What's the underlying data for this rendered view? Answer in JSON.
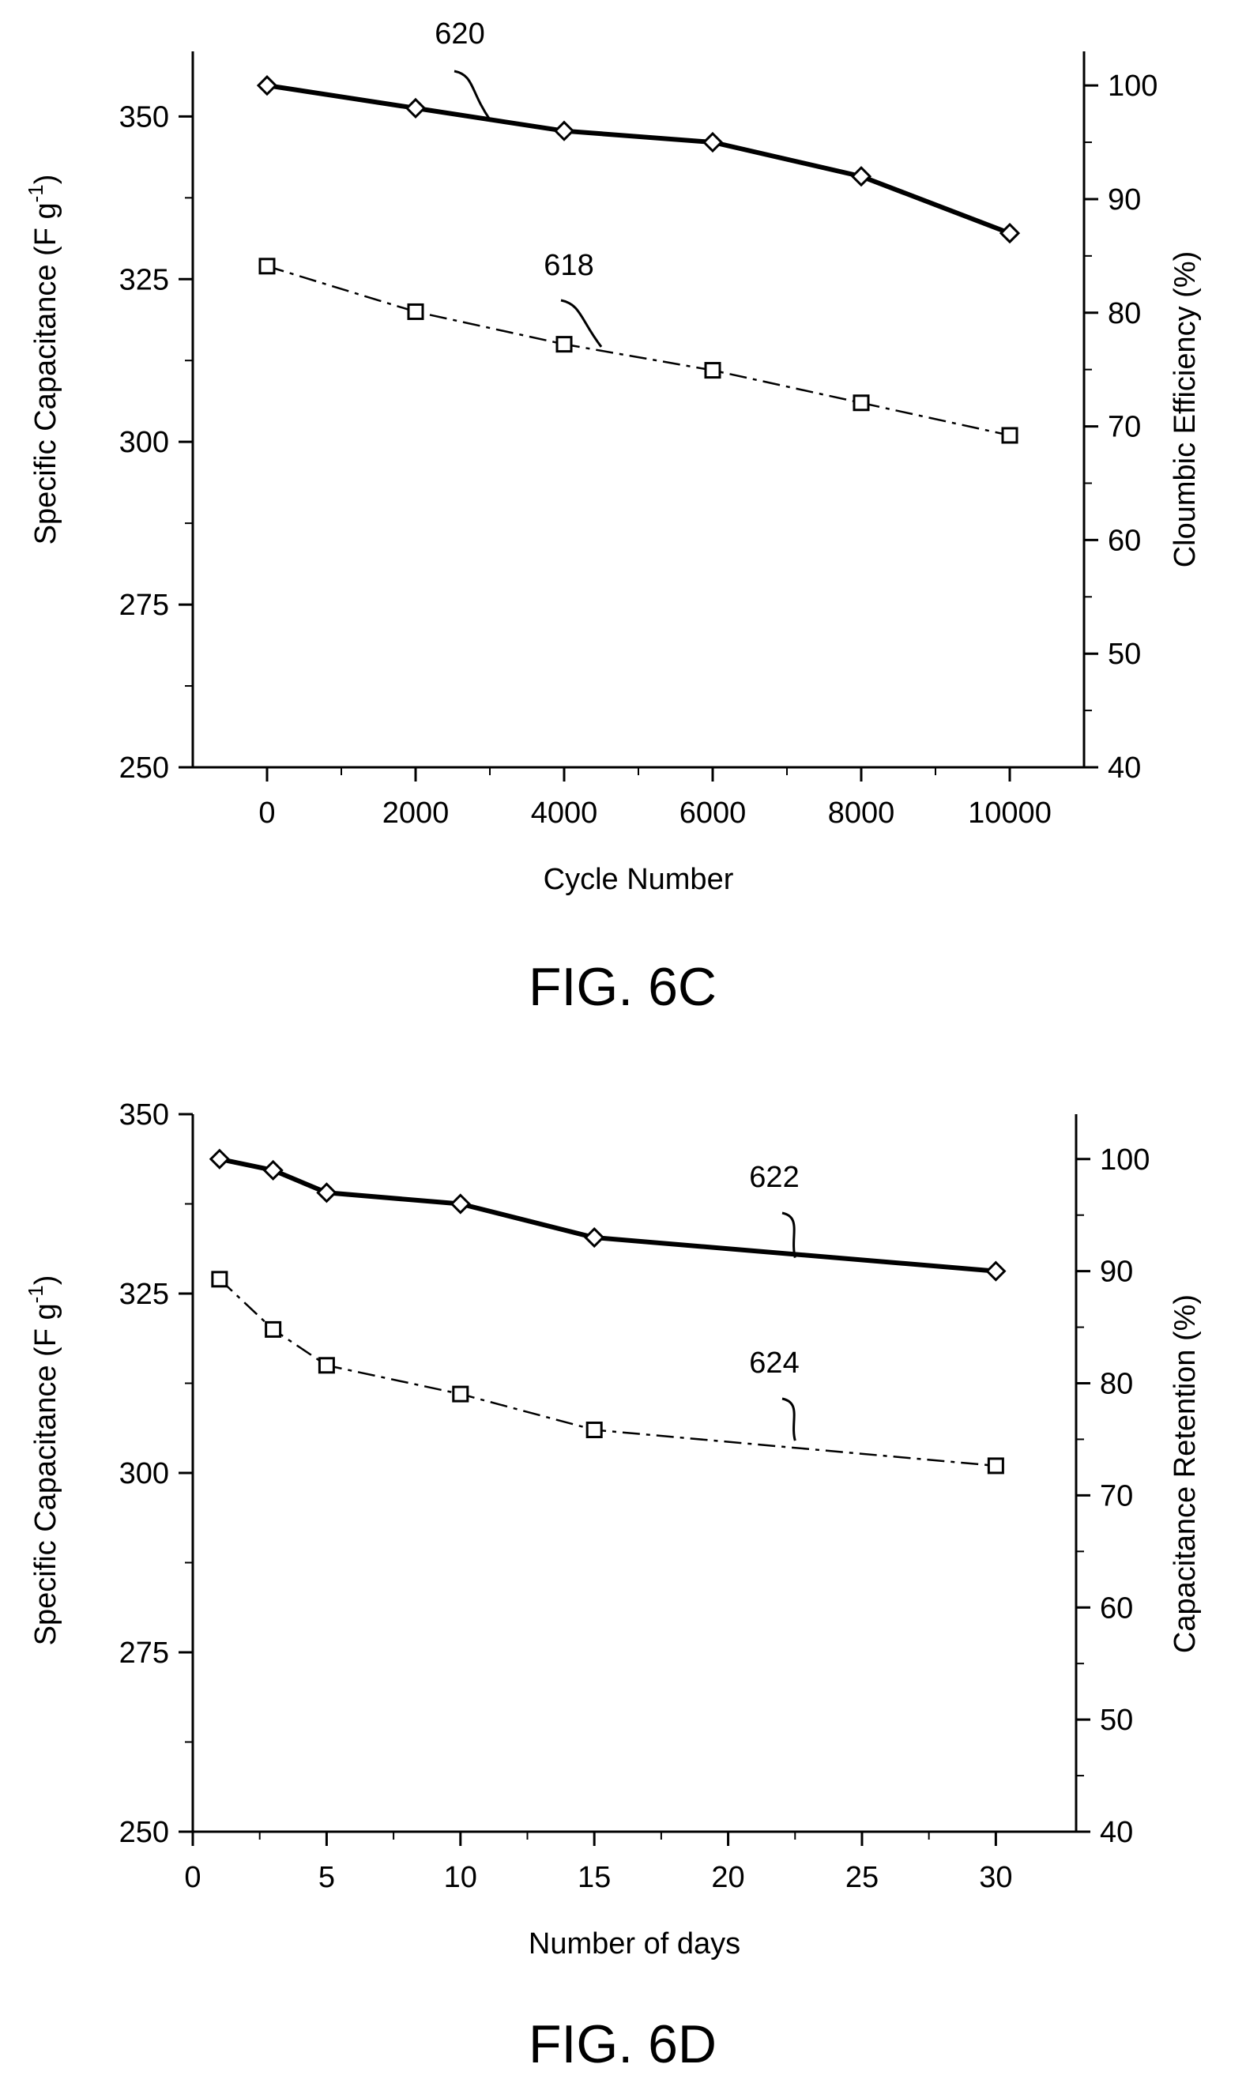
{
  "chart_data": [
    {
      "type": "line",
      "caption": "FIG. 6C",
      "xlabel": "Cycle Number",
      "ylabel_left": "Specific Capacitance (F g",
      "ylabel_left_sup": "-1",
      "ylabel_left_close": ")",
      "ylabel_right": "Cloumbic Efficiency (%)",
      "xlim": [
        -1000,
        11000
      ],
      "ylim_left": [
        250,
        360
      ],
      "ylim_right": [
        40,
        103
      ],
      "xticks": [
        0,
        2000,
        4000,
        6000,
        8000,
        10000
      ],
      "xtick_labels": [
        "0",
        "2000",
        "4000",
        "6000",
        "8000",
        "10000"
      ],
      "yticks_left": [
        250,
        275,
        300,
        325,
        350
      ],
      "ytick_labels_left": [
        "250",
        "275",
        "300",
        "325",
        "350"
      ],
      "yticks_right": [
        40,
        50,
        60,
        70,
        80,
        90,
        100
      ],
      "ytick_labels_right": [
        "40",
        "50",
        "60",
        "70",
        "80",
        "90",
        "100"
      ],
      "grid": false,
      "series": [
        {
          "label": "620",
          "axis": "right",
          "marker": "diamond",
          "line": "solid-bold",
          "x": [
            0,
            2000,
            4000,
            6000,
            8000,
            10000
          ],
          "y": [
            100,
            98,
            96,
            95,
            92,
            87
          ]
        },
        {
          "label": "618",
          "axis": "left",
          "marker": "square",
          "line": "dash-dot",
          "x": [
            0,
            2000,
            4000,
            6000,
            8000,
            10000
          ],
          "y": [
            327,
            320,
            315,
            311,
            306,
            301
          ]
        }
      ]
    },
    {
      "type": "line",
      "caption": "FIG. 6D",
      "xlabel": "Number of days",
      "ylabel_left": "Specific Capacitance (F g",
      "ylabel_left_sup": "-1",
      "ylabel_left_close": ")",
      "ylabel_right": "Capacitance Retention (%)",
      "xlim": [
        0,
        33
      ],
      "ylim_left": [
        250,
        350
      ],
      "ylim_right": [
        40,
        104
      ],
      "xticks": [
        0,
        5,
        10,
        15,
        20,
        25,
        30
      ],
      "xtick_labels": [
        "0",
        "5",
        "10",
        "15",
        "20",
        "25",
        "30"
      ],
      "yticks_left": [
        250,
        275,
        300,
        325,
        350
      ],
      "ytick_labels_left": [
        "250",
        "275",
        "300",
        "325",
        "350"
      ],
      "yticks_right": [
        40,
        50,
        60,
        70,
        80,
        90,
        100
      ],
      "ytick_labels_right": [
        "40",
        "50",
        "60",
        "70",
        "80",
        "90",
        "100"
      ],
      "grid": false,
      "series": [
        {
          "label": "622",
          "axis": "right",
          "marker": "diamond",
          "line": "solid-bold",
          "x": [
            1,
            3,
            5,
            10,
            15,
            30
          ],
          "y": [
            100,
            99,
            97,
            96,
            93,
            90
          ]
        },
        {
          "label": "624",
          "axis": "left",
          "marker": "square",
          "line": "dash-dot",
          "x": [
            1,
            3,
            5,
            10,
            15,
            30
          ],
          "y": [
            327,
            320,
            315,
            311,
            306,
            301
          ]
        }
      ]
    }
  ]
}
